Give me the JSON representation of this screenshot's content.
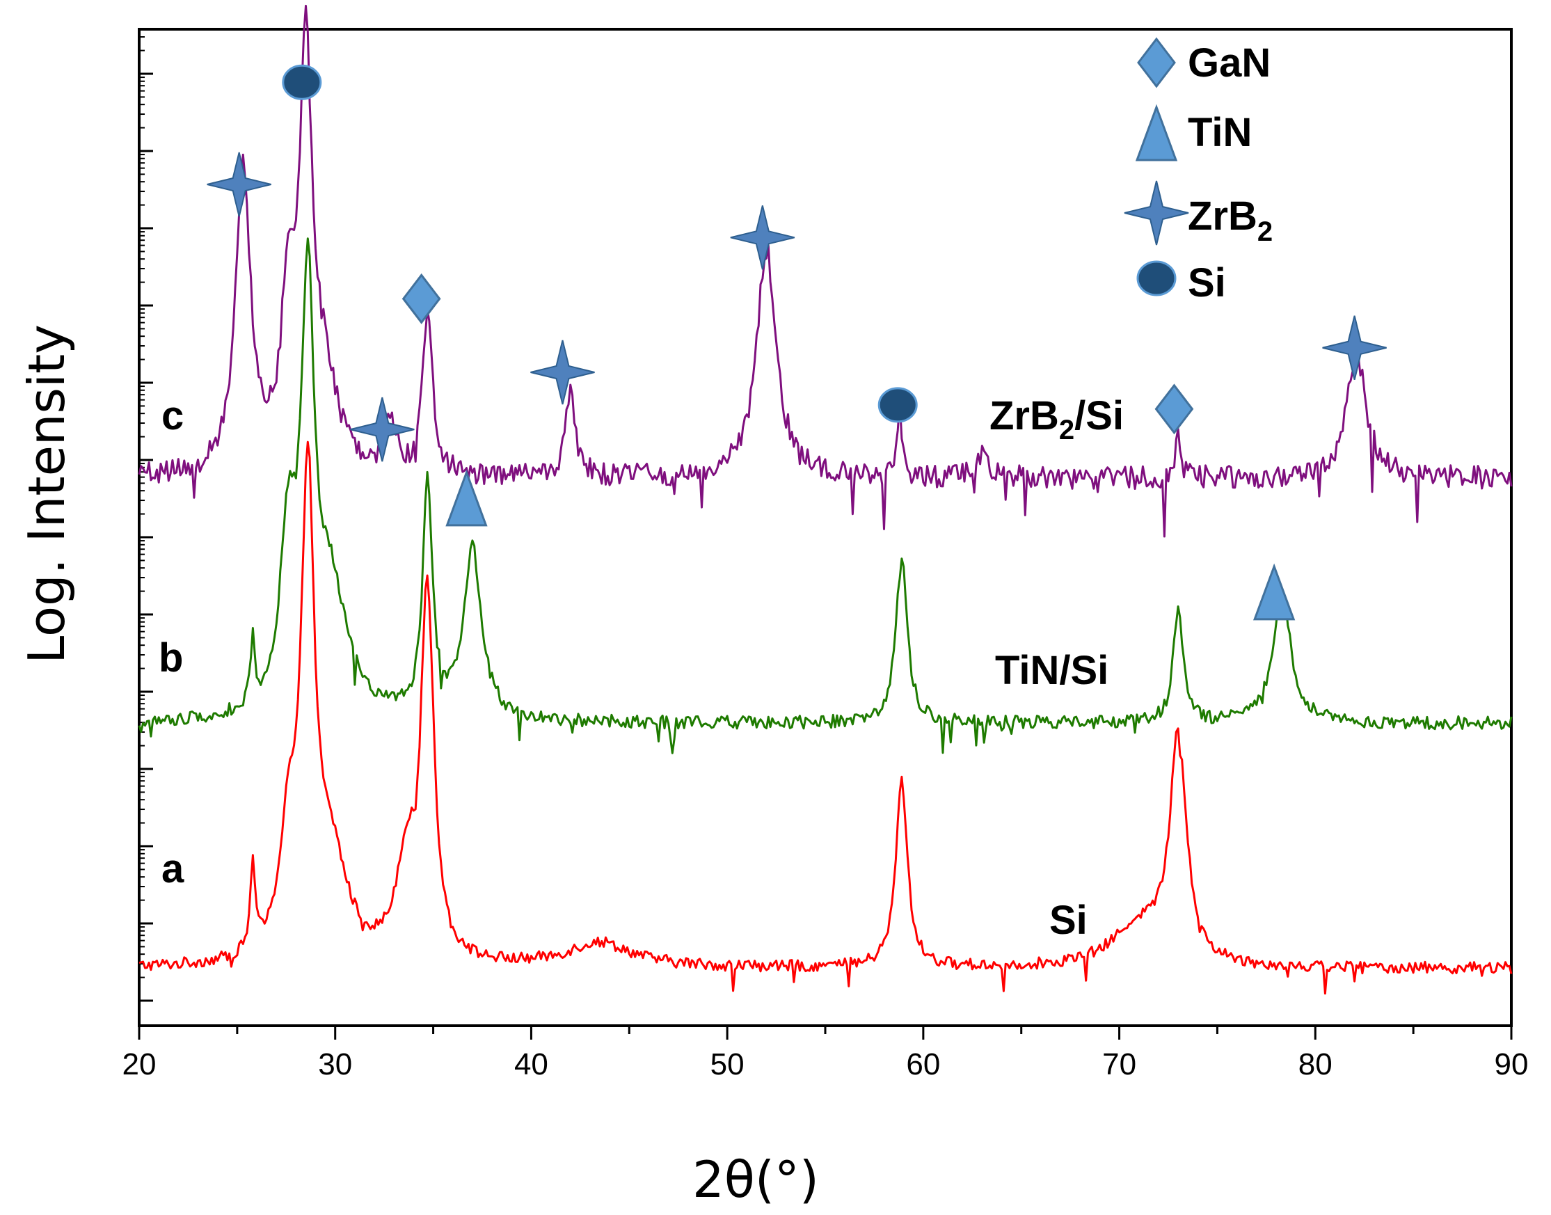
{
  "chart_data": {
    "type": "line",
    "title": "",
    "xlabel": "2θ(°)",
    "ylabel": "Log. Intensity",
    "xlim": [
      20,
      90
    ],
    "x_ticks": [
      "20",
      "30",
      "40",
      "50",
      "60",
      "70",
      "80",
      "90"
    ],
    "x_step": 0.1,
    "grid": false,
    "legend_position": "top-right",
    "legend": [
      {
        "symbol": "diamond",
        "label": "GaN",
        "color": "#5b9bd5"
      },
      {
        "symbol": "triangle",
        "label": "TiN",
        "color": "#5b9bd5"
      },
      {
        "symbol": "star",
        "label": "ZrB",
        "sub": "2",
        "color": "#4f81bd"
      },
      {
        "symbol": "circle",
        "label": "Si",
        "color": "#1f4e79"
      }
    ],
    "series": [
      {
        "name": "a",
        "label": "Si",
        "color": "#ff0000",
        "baseline": 1.0,
        "noise": 0.07,
        "offset": 0.0,
        "peaks": [
          {
            "x": 25.8,
            "h": 1.1,
            "w": 0.15
          },
          {
            "x": 27.6,
            "h": 1.4,
            "w": 0.5
          },
          {
            "x": 28.6,
            "h": 5.7,
            "w": 0.4
          },
          {
            "x": 29.8,
            "h": 1.2,
            "w": 1.0
          },
          {
            "x": 33.6,
            "h": 1.1,
            "w": 0.6
          },
          {
            "x": 34.7,
            "h": 4.5,
            "w": 0.4
          },
          {
            "x": 43.5,
            "h": 0.3,
            "w": 2.0
          },
          {
            "x": 58.9,
            "h": 2.3,
            "w": 0.35
          },
          {
            "x": 73.0,
            "h": 2.8,
            "w": 0.5
          },
          {
            "x": 71.0,
            "h": 0.5,
            "w": 1.6
          }
        ]
      },
      {
        "name": "b",
        "label": "TiN/Si",
        "color": "#1e7b00",
        "baseline": 1.0,
        "noise": 0.08,
        "offset": 3.0,
        "peaks": [
          {
            "x": 25.8,
            "h": 0.9,
            "w": 0.12
          },
          {
            "x": 27.6,
            "h": 2.0,
            "w": 0.5
          },
          {
            "x": 28.6,
            "h": 4.9,
            "w": 0.4
          },
          {
            "x": 29.8,
            "h": 1.5,
            "w": 1.0
          },
          {
            "x": 34.7,
            "h": 2.8,
            "w": 0.3
          },
          {
            "x": 37.0,
            "h": 2.1,
            "w": 0.55
          },
          {
            "x": 58.9,
            "h": 2.0,
            "w": 0.35
          },
          {
            "x": 73.0,
            "h": 1.4,
            "w": 0.3
          },
          {
            "x": 78.3,
            "h": 1.6,
            "w": 0.55
          }
        ]
      },
      {
        "name": "c",
        "label": "ZrB2/Si",
        "color": "#7f0f7e",
        "baseline": 1.0,
        "noise": 0.14,
        "offset": 6.0,
        "peaks": [
          {
            "x": 25.3,
            "h": 3.8,
            "w": 0.45
          },
          {
            "x": 27.6,
            "h": 2.0,
            "w": 0.4
          },
          {
            "x": 28.5,
            "h": 4.9,
            "w": 0.4
          },
          {
            "x": 29.5,
            "h": 1.0,
            "w": 0.8
          },
          {
            "x": 32.8,
            "h": 0.7,
            "w": 0.3
          },
          {
            "x": 34.7,
            "h": 2.0,
            "w": 0.3
          },
          {
            "x": 42.0,
            "h": 1.0,
            "w": 0.3
          },
          {
            "x": 52.0,
            "h": 2.8,
            "w": 0.6
          },
          {
            "x": 58.8,
            "h": 0.8,
            "w": 0.15
          },
          {
            "x": 63.0,
            "h": 0.3,
            "w": 0.4
          },
          {
            "x": 73.0,
            "h": 0.6,
            "w": 0.15
          },
          {
            "x": 82.1,
            "h": 1.5,
            "w": 0.6
          }
        ]
      }
    ],
    "series_letters": [
      "a",
      "b",
      "c"
    ],
    "sample_labels": [
      {
        "text": "Si",
        "sub": ""
      },
      {
        "text": "TiN/Si",
        "sub": ""
      },
      {
        "text": "ZrB",
        "sub": "2",
        "tail": "/Si"
      }
    ],
    "markers": [
      {
        "phase": "ZrB2",
        "symbol": "star",
        "x": 25.1,
        "y_rel": 10.6
      },
      {
        "phase": "Si",
        "symbol": "circle",
        "x": 28.3,
        "y_rel": 11.85
      },
      {
        "phase": "ZrB2",
        "symbol": "star",
        "x": 32.4,
        "y_rel": 7.6
      },
      {
        "phase": "GaN",
        "symbol": "diamond",
        "x": 34.4,
        "y_rel": 9.2
      },
      {
        "phase": "TiN",
        "symbol": "triangle",
        "x": 36.7,
        "y_rel": 6.75
      },
      {
        "phase": "ZrB2",
        "symbol": "star",
        "x": 41.6,
        "y_rel": 8.3
      },
      {
        "phase": "ZrB2",
        "symbol": "star",
        "x": 51.8,
        "y_rel": 9.95
      },
      {
        "phase": "Si",
        "symbol": "circle",
        "x": 58.7,
        "y_rel": 7.9
      },
      {
        "phase": "GaN",
        "symbol": "diamond",
        "x": 72.8,
        "y_rel": 7.85
      },
      {
        "phase": "TiN",
        "symbol": "triangle",
        "x": 77.9,
        "y_rel": 5.6
      },
      {
        "phase": "ZrB2",
        "symbol": "star",
        "x": 82.0,
        "y_rel": 8.6
      }
    ]
  }
}
